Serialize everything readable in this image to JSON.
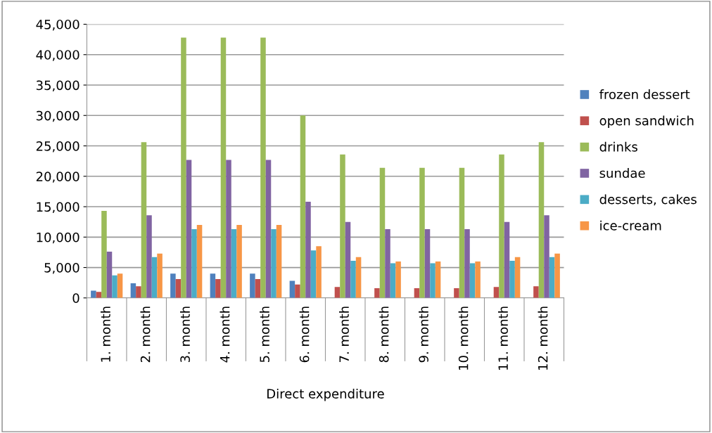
{
  "chart_data": {
    "type": "bar",
    "xlabel": "Direct expenditure",
    "categories": [
      "1. month",
      "2. month",
      "3. month",
      "4. month",
      "5. month",
      "6. month",
      "7. month",
      "8. month",
      "9. month",
      "10. month",
      "11. month",
      "12. month"
    ],
    "series": [
      {
        "name": "frozen dessert",
        "color": "#4f81bd",
        "values": [
          1200,
          2400,
          4000,
          4000,
          4000,
          2800,
          0,
          0,
          0,
          0,
          0,
          0
        ]
      },
      {
        "name": "open sandwich",
        "color": "#c0504d",
        "values": [
          1000,
          1900,
          3100,
          3100,
          3100,
          2200,
          1800,
          1600,
          1600,
          1600,
          1800,
          1900
        ]
      },
      {
        "name": "drinks",
        "color": "#9bbb59",
        "values": [
          14300,
          25600,
          42800,
          42800,
          42800,
          30000,
          23600,
          21400,
          21400,
          21400,
          23600,
          25600
        ]
      },
      {
        "name": "sundae",
        "color": "#8064a2",
        "values": [
          7600,
          13600,
          22700,
          22700,
          22700,
          15800,
          12500,
          11300,
          11300,
          11300,
          12500,
          13600
        ]
      },
      {
        "name": "desserts, cakes",
        "color": "#4bacc6",
        "values": [
          3700,
          6700,
          11300,
          11300,
          11300,
          7800,
          6100,
          5700,
          5700,
          5700,
          6100,
          6700
        ]
      },
      {
        "name": "ice-cream",
        "color": "#f79646",
        "values": [
          4000,
          7300,
          12000,
          12000,
          12000,
          8500,
          6700,
          6000,
          6000,
          6000,
          6700,
          7300
        ]
      }
    ],
    "ylim": [
      0,
      45000
    ],
    "yticks": [
      {
        "value": 0,
        "label": "0"
      },
      {
        "value": 5000,
        "label": "5,000"
      },
      {
        "value": 10000,
        "label": "10,000"
      },
      {
        "value": 15000,
        "label": "15,000"
      },
      {
        "value": 20000,
        "label": "20,000"
      },
      {
        "value": 25000,
        "label": "25,000"
      },
      {
        "value": 30000,
        "label": "30,000"
      },
      {
        "value": 35000,
        "label": "35,000"
      },
      {
        "value": 40000,
        "label": "40,000"
      },
      {
        "value": 45000,
        "label": "45,000"
      }
    ],
    "grid": "y",
    "legend": "right"
  }
}
